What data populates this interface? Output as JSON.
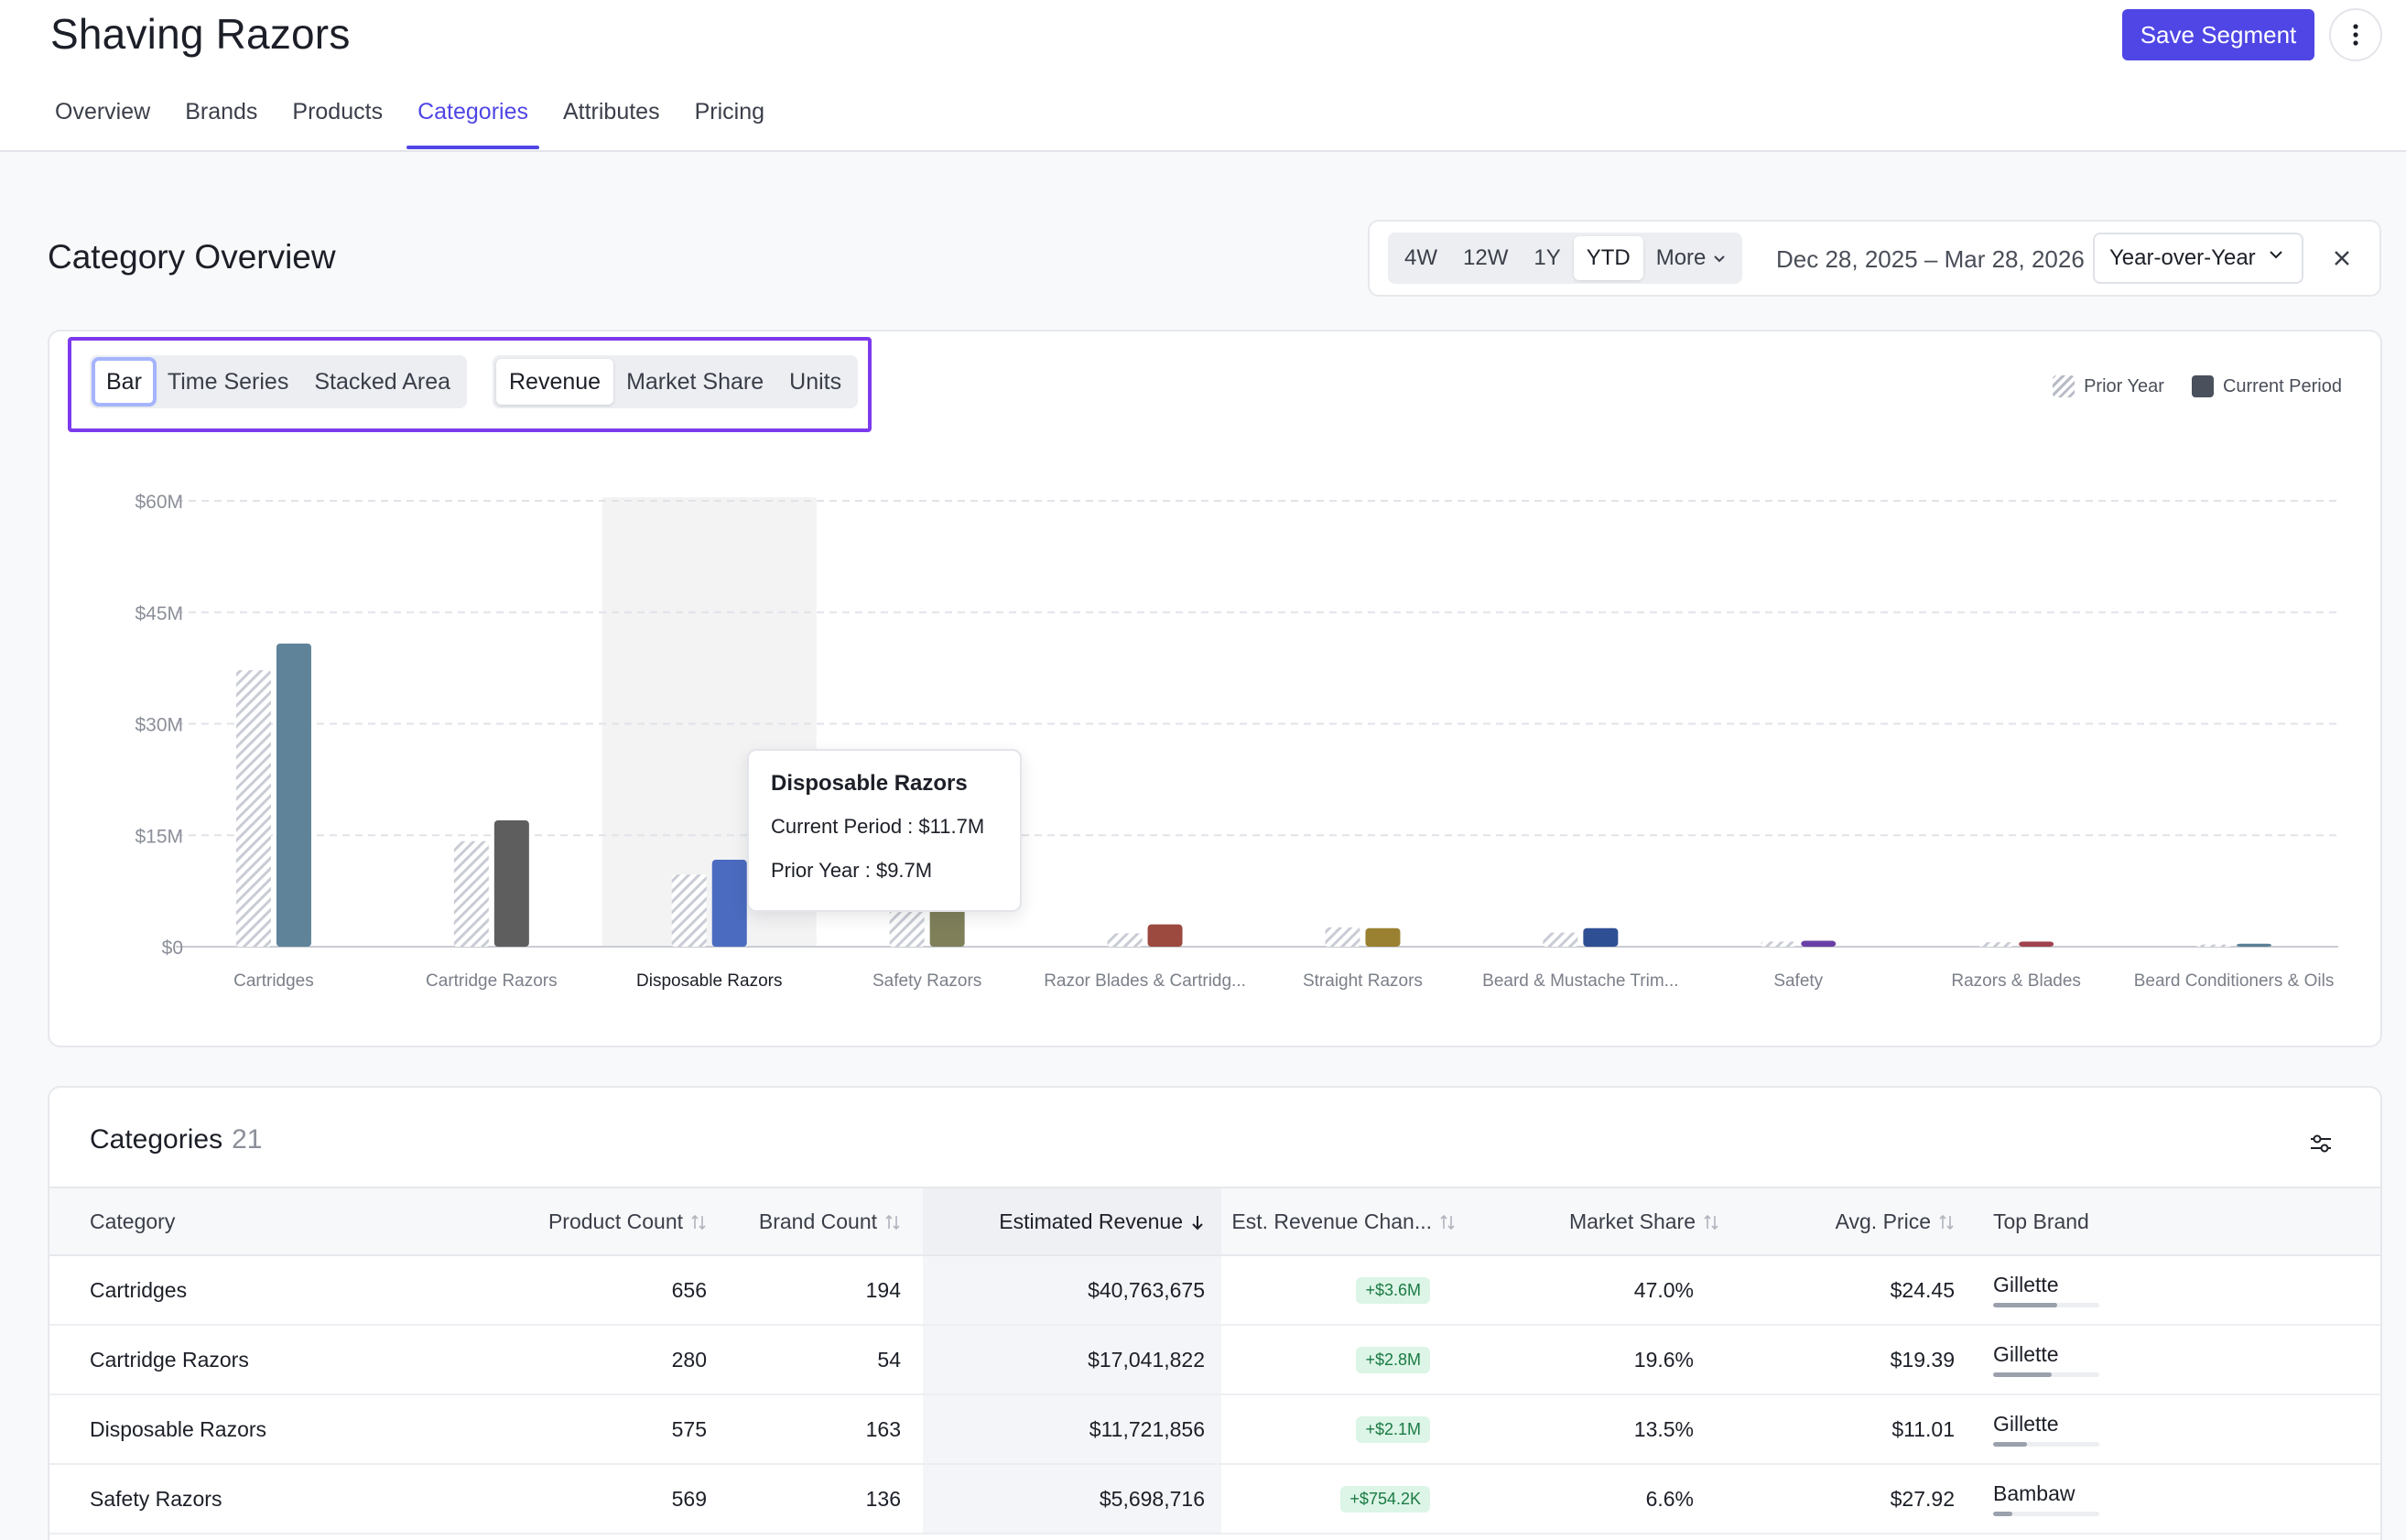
{
  "header": {
    "title": "Shaving Razors",
    "save_label": "Save Segment",
    "tabs": [
      {
        "label": "Overview"
      },
      {
        "label": "Brands"
      },
      {
        "label": "Products"
      },
      {
        "label": "Categories"
      },
      {
        "label": "Attributes"
      },
      {
        "label": "Pricing"
      }
    ],
    "active_tab": "Categories"
  },
  "overview": {
    "title": "Category Overview",
    "periods": [
      "4W",
      "12W",
      "1Y",
      "YTD",
      "More"
    ],
    "active_period": "YTD",
    "date_range": "Dec 28, 2025 – Mar 28, 2026",
    "comparison": "Year-over-Year"
  },
  "chart_controls": {
    "views": [
      "Bar",
      "Time Series",
      "Stacked Area"
    ],
    "active_view": "Bar",
    "metrics": [
      "Revenue",
      "Market Share",
      "Units"
    ],
    "active_metric": "Revenue",
    "legend": {
      "prior": "Prior Year",
      "current": "Current Period"
    }
  },
  "chart_data": {
    "type": "bar",
    "y_ticks": [
      "$60M",
      "$45M",
      "$30M",
      "$15M",
      "$0"
    ],
    "ylim": [
      0,
      60
    ],
    "grid": true,
    "legend_position": "top-right",
    "categories": [
      "Cartridges",
      "Cartridge Razors",
      "Disposable Razors",
      "Safety Razors",
      "Razor Blades & Cartridg...",
      "Straight Razors",
      "Beard & Mustache Trim...",
      "Safety",
      "Razors & Blades",
      "Beard Conditioners & Oils"
    ],
    "series": [
      {
        "name": "Prior Year",
        "values": [
          37.2,
          14.2,
          9.7,
          4.9,
          1.8,
          2.6,
          1.9,
          0.7,
          0.6,
          0.3
        ]
      },
      {
        "name": "Current Period",
        "values": [
          40.8,
          17.0,
          11.7,
          5.7,
          3.0,
          2.5,
          2.5,
          0.8,
          0.7,
          0.4
        ]
      }
    ],
    "current_colors": [
      "#5f8499",
      "#5e5e5e",
      "#4a6bbf",
      "#7f7f5a",
      "#9c4a40",
      "#9a8132",
      "#2f4f95",
      "#6a3fa5",
      "#a0434f",
      "#5a7f93"
    ],
    "hover_category": "Disposable Razors",
    "tooltip": {
      "title": "Disposable Razors",
      "current": "Current Period : $11.7M",
      "prior": "Prior Year : $9.7M"
    }
  },
  "table": {
    "title": "Categories",
    "count": "21",
    "columns": [
      "Category",
      "Product Count",
      "Brand Count",
      "Estimated Revenue",
      "Est. Revenue Chan...",
      "Market Share",
      "Avg. Price",
      "Top Brand"
    ],
    "rows": [
      {
        "category": "Cartridges",
        "product_count": "656",
        "brand_count": "194",
        "revenue": "$40,763,675",
        "change": "+$3.6M",
        "share": "47.0%",
        "price": "$24.45",
        "brand": "Gillette",
        "brand_share": 0.6
      },
      {
        "category": "Cartridge Razors",
        "product_count": "280",
        "brand_count": "54",
        "revenue": "$17,041,822",
        "change": "+$2.8M",
        "share": "19.6%",
        "price": "$19.39",
        "brand": "Gillette",
        "brand_share": 0.55
      },
      {
        "category": "Disposable Razors",
        "product_count": "575",
        "brand_count": "163",
        "revenue": "$11,721,856",
        "change": "+$2.1M",
        "share": "13.5%",
        "price": "$11.01",
        "brand": "Gillette",
        "brand_share": 0.32
      },
      {
        "category": "Safety Razors",
        "product_count": "569",
        "brand_count": "136",
        "revenue": "$5,698,716",
        "change": "+$754.2K",
        "share": "6.6%",
        "price": "$27.92",
        "brand": "Bambaw",
        "brand_share": 0.18
      }
    ]
  }
}
